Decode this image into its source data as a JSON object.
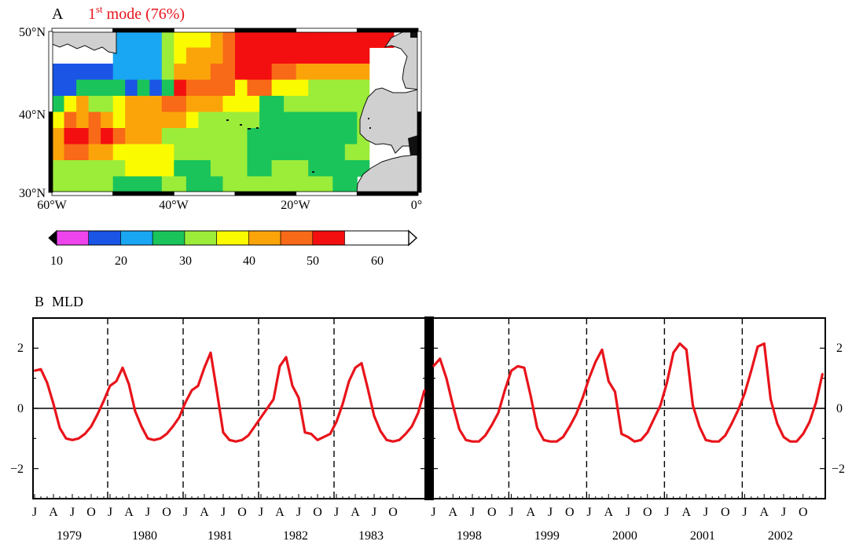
{
  "panel_a": {
    "letter": "A",
    "title_prefix": "1",
    "title_superscript": "st",
    "title_suffix": " mode (76%)",
    "title_color": "#e8141b"
  },
  "panel_b": {
    "letter": "B",
    "title": "MLD"
  },
  "chart_data": [
    {
      "type": "heatmap",
      "title": "1st mode (76%)",
      "lon_range": [
        -60,
        0
      ],
      "lat_range": [
        30,
        50
      ],
      "x_tick_labels": [
        "60°W",
        "40°W",
        "20°W",
        "0°"
      ],
      "y_tick_labels": [
        "50°N",
        "40°N",
        "30°N"
      ],
      "grid_columns": [
        -60,
        -58,
        -56,
        -54,
        -52,
        -50,
        -48,
        -46,
        -44,
        -42,
        -40,
        -38,
        -36,
        -34,
        -32,
        -30,
        -28,
        -26,
        -24,
        -22,
        -20,
        -18,
        -16,
        -14,
        -12,
        -10,
        -8,
        -6,
        -4,
        -2,
        0
      ],
      "grid_rows": [
        49,
        47,
        45,
        43,
        41,
        39,
        37,
        35,
        33,
        31
      ],
      "values": [
        [
          null,
          null,
          null,
          null,
          null,
          23,
          23,
          23,
          23,
          33,
          38,
          38,
          38,
          40,
          47,
          52,
          58,
          58,
          58,
          58,
          58,
          58,
          58,
          58,
          58,
          52,
          52,
          52,
          null,
          null
        ],
        [
          null,
          null,
          null,
          null,
          null,
          23,
          23,
          23,
          23,
          33,
          38,
          43,
          43,
          40,
          47,
          52,
          58,
          58,
          53,
          53,
          53,
          53,
          53,
          53,
          53,
          53,
          null,
          null,
          null,
          null
        ],
        [
          15,
          15,
          15,
          15,
          15,
          23,
          23,
          23,
          23,
          33,
          43,
          43,
          43,
          47,
          47,
          52,
          58,
          58,
          47,
          47,
          43,
          43,
          43,
          43,
          43,
          43,
          null,
          null,
          null,
          null
        ],
        [
          15,
          18,
          28,
          28,
          28,
          28,
          18,
          28,
          18,
          28,
          52,
          47,
          47,
          47,
          47,
          38,
          47,
          47,
          38,
          38,
          38,
          33,
          33,
          33,
          33,
          33,
          null,
          null,
          null,
          null
        ],
        [
          28,
          38,
          43,
          33,
          33,
          38,
          43,
          43,
          43,
          47,
          47,
          43,
          43,
          43,
          38,
          38,
          38,
          28,
          28,
          33,
          33,
          33,
          33,
          33,
          33,
          33,
          null,
          null,
          null,
          null
        ],
        [
          38,
          47,
          43,
          47,
          43,
          38,
          43,
          43,
          43,
          43,
          43,
          38,
          33,
          33,
          33,
          33,
          33,
          28,
          28,
          28,
          28,
          28,
          28,
          28,
          28,
          33,
          null,
          null,
          null,
          null
        ],
        [
          43,
          52,
          52,
          47,
          52,
          47,
          43,
          43,
          43,
          33,
          33,
          33,
          33,
          33,
          33,
          33,
          28,
          28,
          28,
          28,
          28,
          28,
          28,
          28,
          28,
          33,
          null,
          null,
          null,
          null
        ],
        [
          43,
          47,
          47,
          43,
          43,
          38,
          38,
          38,
          38,
          38,
          33,
          33,
          33,
          33,
          33,
          33,
          28,
          28,
          28,
          28,
          28,
          28,
          28,
          28,
          33,
          33,
          null,
          null,
          null,
          null
        ],
        [
          33,
          33,
          33,
          33,
          33,
          33,
          38,
          38,
          38,
          38,
          28,
          28,
          28,
          33,
          33,
          33,
          28,
          28,
          33,
          33,
          33,
          28,
          28,
          28,
          28,
          28,
          null,
          null,
          null,
          null
        ],
        [
          33,
          33,
          33,
          33,
          33,
          28,
          28,
          28,
          28,
          33,
          33,
          28,
          28,
          28,
          33,
          33,
          33,
          33,
          33,
          33,
          33,
          33,
          33,
          28,
          28,
          null,
          null,
          null,
          null,
          null
        ]
      ],
      "colorbar": {
        "tick_labels": [
          "10",
          "20",
          "30",
          "40",
          "50",
          "60"
        ],
        "bounds": [
          10,
          15,
          20,
          25,
          30,
          35,
          40,
          45,
          50,
          55,
          60,
          65
        ],
        "colors": [
          "#ee44ee",
          "#1a55e6",
          "#19a6f2",
          "#1ac45a",
          "#9cec3a",
          "#fbfb00",
          "#fba40a",
          "#f86918",
          "#f30f0f"
        ],
        "extend_low_color": "#000000",
        "extend_high_color": "#ffffff"
      }
    },
    {
      "type": "line",
      "title": "MLD",
      "ylim": [
        -3,
        3
      ],
      "y_tick_labels": [
        "2",
        "0",
        "−2"
      ],
      "month_tick_labels": [
        "J",
        "A",
        "J",
        "O"
      ],
      "series": [
        {
          "segment": 1,
          "color": "#e8141b",
          "year_labels": [
            "1979",
            "1980",
            "1981",
            "1982",
            "1983"
          ],
          "values": [
            1.25,
            1.3,
            0.85,
            0.15,
            -0.65,
            -1.0,
            -1.05,
            -1.0,
            -0.85,
            -0.6,
            -0.2,
            0.25,
            0.75,
            0.9,
            1.35,
            0.8,
            -0.1,
            -0.6,
            -1.0,
            -1.05,
            -1.0,
            -0.85,
            -0.6,
            -0.3,
            0.2,
            0.6,
            0.75,
            1.35,
            1.85,
            0.55,
            -0.8,
            -1.05,
            -1.1,
            -1.05,
            -0.9,
            -0.6,
            -0.3,
            0.0,
            0.3,
            1.4,
            1.7,
            0.75,
            0.35,
            -0.8,
            -0.85,
            -1.05,
            -0.95,
            -0.85,
            -0.45,
            0.15,
            0.9,
            1.35,
            1.5,
            0.65,
            -0.25,
            -0.75,
            -1.05,
            -1.1,
            -1.05,
            -0.85,
            -0.6,
            -0.15,
            0.6
          ]
        },
        {
          "segment": 2,
          "color": "#e8141b",
          "year_labels": [
            "1998",
            "1999",
            "2000",
            "2001",
            "2002"
          ],
          "values": [
            1.4,
            1.65,
            1.0,
            0.1,
            -0.7,
            -1.05,
            -1.1,
            -1.1,
            -0.9,
            -0.55,
            -0.15,
            0.6,
            1.25,
            1.4,
            1.35,
            0.4,
            -0.65,
            -1.05,
            -1.1,
            -1.1,
            -0.95,
            -0.6,
            -0.2,
            0.35,
            1.0,
            1.55,
            1.95,
            0.9,
            0.55,
            -0.85,
            -0.95,
            -1.1,
            -1.05,
            -0.8,
            -0.35,
            0.1,
            0.85,
            1.85,
            2.15,
            1.95,
            0.1,
            -0.6,
            -1.05,
            -1.1,
            -1.1,
            -0.9,
            -0.5,
            -0.05,
            0.5,
            1.25,
            2.05,
            2.15,
            0.3,
            -0.5,
            -0.95,
            -1.1,
            -1.1,
            -0.85,
            -0.45,
            0.2,
            1.15
          ]
        }
      ]
    }
  ]
}
